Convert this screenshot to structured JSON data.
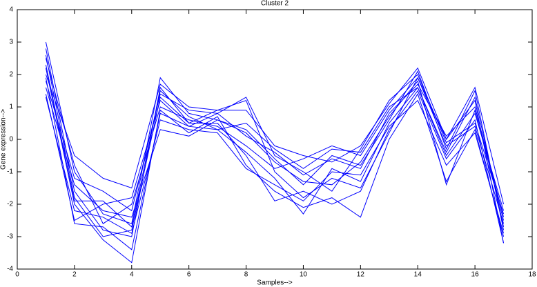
{
  "chart_data": {
    "type": "line",
    "title": "Cluster 2",
    "x_label": "Samples-->",
    "y_label": "Gene expression-->",
    "x": [
      1,
      2,
      3,
      4,
      5,
      6,
      7,
      8,
      9,
      10,
      11,
      12,
      13,
      14,
      15,
      16,
      17
    ],
    "xlim": [
      0,
      18
    ],
    "xticks": [
      0,
      2,
      4,
      6,
      8,
      10,
      12,
      14,
      16,
      18
    ],
    "ylim": [
      -4,
      4
    ],
    "yticks": [
      -4,
      -3,
      -2,
      -1,
      0,
      1,
      2,
      3,
      4
    ],
    "grid": false,
    "series": [
      {
        "color": "#0000ff",
        "values": [
          3.0,
          -1.0,
          -2.3,
          -2.6,
          1.9,
          0.8,
          0.6,
          0.3,
          -0.6,
          -1.4,
          -0.5,
          -0.8,
          0.6,
          2.1,
          -0.3,
          1.5,
          -2.8
        ]
      },
      {
        "color": "#0000ff",
        "values": [
          2.8,
          -1.6,
          -2.8,
          -3.0,
          1.6,
          0.5,
          0.9,
          1.2,
          -1.0,
          -1.8,
          -1.2,
          -1.5,
          0.2,
          1.9,
          0.0,
          1.2,
          -3.2
        ]
      },
      {
        "color": "#0000ff",
        "values": [
          1.4,
          -2.5,
          -2.0,
          -1.8,
          1.2,
          0.4,
          0.3,
          0.5,
          -0.3,
          -0.9,
          -0.3,
          -0.4,
          1.0,
          1.6,
          -0.5,
          0.8,
          -2.2
        ]
      },
      {
        "color": "#0000ff",
        "values": [
          2.2,
          -2.0,
          -3.1,
          -3.8,
          0.9,
          0.2,
          0.7,
          -0.8,
          -1.6,
          -2.1,
          -1.8,
          -2.4,
          0.0,
          1.4,
          -1.3,
          0.3,
          -3.0
        ]
      },
      {
        "color": "#0000ff",
        "values": [
          1.8,
          -1.2,
          -1.6,
          -2.2,
          1.4,
          0.9,
          0.8,
          0.1,
          -0.4,
          -1.1,
          -0.6,
          -0.9,
          0.8,
          1.7,
          0.1,
          1.0,
          -2.4
        ]
      },
      {
        "color": "#0000ff",
        "values": [
          2.5,
          -0.8,
          -2.6,
          -2.0,
          1.0,
          0.6,
          0.4,
          -0.2,
          -0.9,
          -0.6,
          -0.2,
          -0.5,
          0.9,
          1.9,
          -0.2,
          0.4,
          -2.6
        ]
      },
      {
        "color": "#0000ff",
        "values": [
          1.3,
          -2.2,
          -2.4,
          -2.9,
          0.6,
          0.3,
          0.2,
          -0.9,
          -1.4,
          -1.9,
          -1.0,
          -1.1,
          0.4,
          1.2,
          -0.8,
          0.2,
          -2.9
        ]
      },
      {
        "color": "#0000ff",
        "values": [
          2.0,
          -0.5,
          -1.2,
          -1.5,
          1.7,
          1.0,
          0.9,
          0.9,
          -0.2,
          -0.5,
          -0.7,
          -0.2,
          1.1,
          2.2,
          0.0,
          1.6,
          -2.0
        ]
      },
      {
        "color": "#0000ff",
        "values": [
          2.6,
          -1.8,
          -3.0,
          -2.8,
          1.3,
          0.5,
          0.5,
          -0.5,
          -1.9,
          -1.6,
          -2.0,
          -1.6,
          0.3,
          1.5,
          -0.6,
          0.6,
          -3.2
        ]
      },
      {
        "color": "#0000ff",
        "values": [
          1.6,
          -1.4,
          -2.2,
          -2.4,
          0.3,
          0.1,
          0.6,
          0.2,
          -0.7,
          -1.3,
          -1.4,
          -0.7,
          0.7,
          1.8,
          -1.4,
          0.9,
          -2.5
        ]
      },
      {
        "color": "#0000ff",
        "values": [
          2.3,
          -1.9,
          -1.9,
          -2.7,
          1.5,
          0.7,
          0.3,
          -0.4,
          -1.2,
          -2.3,
          -0.9,
          -1.3,
          0.5,
          1.6,
          -0.4,
          1.3,
          -2.7
        ]
      },
      {
        "color": "#0000ff",
        "values": [
          1.9,
          -2.6,
          -2.7,
          -3.4,
          0.8,
          0.4,
          0.8,
          1.3,
          -0.5,
          -1.0,
          -1.6,
          -0.3,
          1.2,
          2.0,
          -0.1,
          0.5,
          -2.3
        ]
      }
    ]
  }
}
